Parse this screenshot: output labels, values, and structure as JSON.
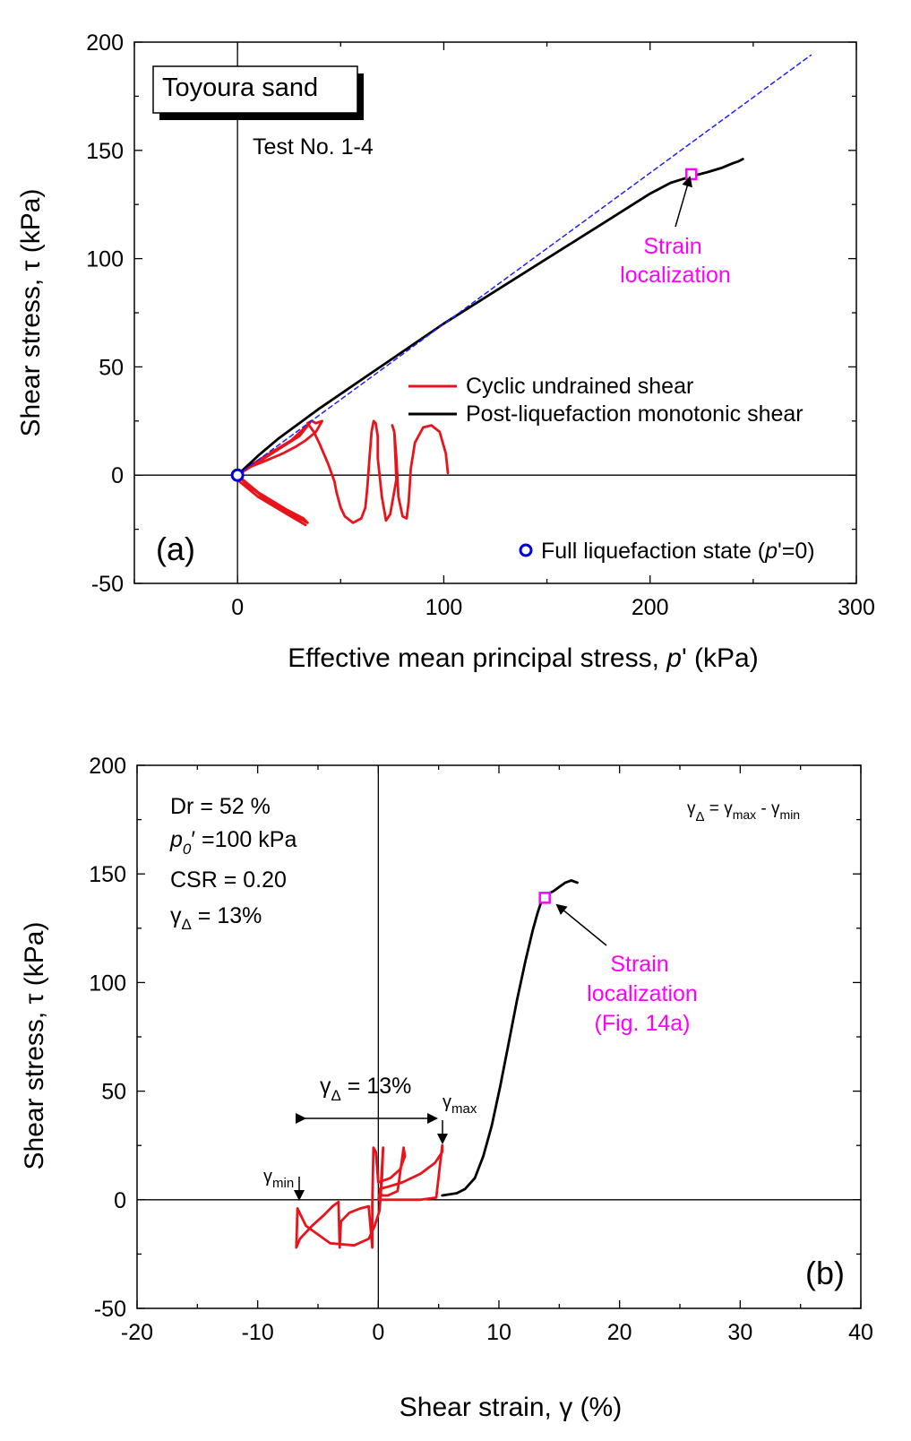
{
  "figure": {
    "panel_a_label": "(a)",
    "panel_b_label": "(b)"
  },
  "chart_data": [
    {
      "type": "line",
      "panel": "a",
      "title": "",
      "xlabel_main": "Effective mean principal stress, ",
      "xlabel_var": "p",
      "xlabel_rest": "' (kPa)",
      "ylabel": "Shear stress, τ (kPa)",
      "xlim": [
        -50,
        300
      ],
      "ylim": [
        -50,
        200
      ],
      "xticks": [
        "0",
        "100",
        "200",
        "300"
      ],
      "xtick_values": [
        0,
        100,
        200,
        300
      ],
      "yticks": [
        "-50",
        "0",
        "50",
        "100",
        "150",
        "200"
      ],
      "ytick_values": [
        -50,
        0,
        50,
        100,
        150,
        200
      ],
      "box_label": "Toyoura sand",
      "test_label": "Test No. 1-4",
      "legend": [
        {
          "name": "Cyclic undrained shear",
          "color": "#e8141c"
        },
        {
          "name": "Post-liquefaction monotonic shear",
          "color": "#000000"
        }
      ],
      "marker_legend_main": "Full liquefaction state (",
      "marker_legend_var": "p",
      "marker_legend_rest": "'=0)",
      "annotation_line1": "Strain",
      "annotation_line2": "localization",
      "series": [
        {
          "name": "Cyclic undrained shear",
          "color": "#e8141c",
          "x": [
            102,
            101,
            98,
            94,
            90,
            86,
            84,
            83,
            82,
            80,
            78,
            77,
            76,
            75,
            76,
            77,
            74,
            72,
            70,
            68,
            68,
            67,
            66,
            65,
            64,
            63,
            62,
            60,
            56,
            52,
            50,
            48,
            47,
            44,
            40,
            37,
            34,
            36,
            38,
            41,
            38,
            33,
            28,
            22,
            12,
            4,
            0,
            10,
            24,
            32,
            34,
            26,
            16,
            5,
            0,
            10,
            20,
            30,
            35,
            26,
            12,
            2,
            0,
            12,
            24,
            33,
            24,
            10,
            1,
            0
          ],
          "y": [
            1,
            10,
            20,
            23,
            22,
            15,
            3,
            -12,
            -20,
            -19,
            -10,
            8,
            20,
            23,
            20,
            -2,
            -18,
            -21,
            -10,
            8,
            18,
            24,
            25,
            20,
            8,
            -5,
            -15,
            -20,
            -22,
            -19,
            -15,
            -8,
            -3,
            5,
            14,
            20,
            24,
            25,
            24,
            25,
            20,
            16,
            13,
            10,
            6,
            3,
            0,
            -8,
            -16,
            -20,
            -22,
            -18,
            -12,
            -5,
            0,
            6,
            12,
            18,
            24,
            16,
            8,
            2,
            0,
            -10,
            -18,
            -23,
            -18,
            -10,
            -3,
            0
          ]
        },
        {
          "name": "Post-liquefaction monotonic shear",
          "color": "#000000",
          "x": [
            0,
            10,
            20,
            30,
            40,
            60,
            80,
            100,
            120,
            140,
            160,
            175,
            190,
            200,
            210,
            220,
            228,
            235,
            240,
            243,
            245
          ],
          "y": [
            0,
            9,
            17,
            24,
            31,
            44,
            57,
            70,
            82,
            94,
            106,
            115,
            124,
            130,
            135,
            138,
            140,
            142,
            144,
            145,
            146
          ]
        },
        {
          "name": "Dashed line",
          "color": "#1f1fff",
          "x": [
            0,
            278
          ],
          "y": [
            0,
            194
          ]
        }
      ],
      "points": [
        {
          "name": "Full liquefaction state",
          "x": 0,
          "y": 0,
          "color": "#0000dd",
          "marker": "circle"
        },
        {
          "name": "Strain localization",
          "x": 220,
          "y": 139,
          "color": "#ff00ff",
          "marker": "square"
        }
      ]
    },
    {
      "type": "line",
      "panel": "b",
      "title": "",
      "xlabel": "Shear strain, γ (%)",
      "ylabel": "Shear stress, τ (kPa)",
      "xlim": [
        -20,
        40
      ],
      "ylim": [
        -50,
        200
      ],
      "xticks": [
        "-20",
        "-10",
        "0",
        "10",
        "20",
        "30",
        "40"
      ],
      "xtick_values": [
        -20,
        -10,
        0,
        10,
        20,
        30,
        40
      ],
      "yticks": [
        "-50",
        "0",
        "50",
        "100",
        "150",
        "200"
      ],
      "ytick_values": [
        -50,
        0,
        50,
        100,
        150,
        200
      ],
      "info": {
        "dr": "Dr = 52 %",
        "p0_var": "p",
        "p0_sub": "0",
        "p0_rest": "′ =100 kPa",
        "csr": "CSR = 0.20",
        "gamma_delta_sym": "γ",
        "gamma_delta_sub": "Δ",
        "gamma_delta_rest": " = 13%"
      },
      "formula": {
        "g": "γ",
        "delta": "Δ",
        "eq": " = ",
        "max": "max",
        "minus": " - ",
        "min": "min"
      },
      "range_label_sym": "γ",
      "range_label_sub": "Δ",
      "range_label_rest": " = 13%",
      "gmax_sym": "γ",
      "gmax_sub": "max",
      "gmin_sym": "γ",
      "gmin_sub": "min",
      "annotation_line1": "Strain",
      "annotation_line2": "localization",
      "annotation_line3": "(Fig. 14a)",
      "series": [
        {
          "name": "Cyclic undrained shear",
          "color": "#e8141c",
          "x": [
            0,
            0.2,
            0.3,
            0.4,
            0.3,
            0.1,
            -0.3,
            -0.8,
            -2,
            -4,
            -6,
            -6.7,
            -6.8,
            -6.5,
            -5.5,
            -4.5,
            -3.8,
            -3.3,
            -3.2,
            -3.1,
            -2.4,
            -1.5,
            -0.8,
            -0.5,
            -0.5,
            -0.4,
            -0.2,
            0,
            1,
            1.8,
            2.2,
            2.1,
            1.6,
            0.8,
            0.3,
            0.2,
            0.1,
            0.8,
            2,
            3.5,
            4.7,
            5.3,
            5.3,
            4.8,
            3.5,
            2,
            1,
            0.2
          ],
          "y": [
            0,
            5,
            15,
            24,
            10,
            -5,
            -12,
            -18,
            -21,
            -20,
            -12,
            -4,
            -22,
            -18,
            -12,
            -7,
            -3,
            -1,
            -22,
            -10,
            -6,
            -4,
            -3,
            -22,
            -2,
            24,
            22,
            8,
            10,
            14,
            20,
            24,
            4,
            2,
            2,
            3,
            5,
            6,
            8,
            12,
            17,
            22,
            25,
            1,
            0,
            0,
            0,
            0
          ]
        },
        {
          "name": "Post-liquefaction monotonic shear",
          "color": "#000000",
          "x": [
            5.3,
            6.5,
            7.2,
            8,
            8.7,
            9.4,
            10.1,
            10.8,
            11.5,
            12.2,
            12.8,
            13.2,
            13.5,
            13.8,
            14.1,
            14.5,
            15,
            15.5,
            16,
            16.5
          ],
          "y": [
            2,
            3,
            5,
            10,
            20,
            34,
            52,
            72,
            92,
            110,
            124,
            132,
            137,
            139,
            141,
            142,
            144,
            146,
            147,
            146
          ]
        }
      ],
      "points": [
        {
          "name": "Strain localization",
          "x": 13.8,
          "y": 139,
          "color": "#ff00ff",
          "marker": "square"
        }
      ]
    }
  ]
}
